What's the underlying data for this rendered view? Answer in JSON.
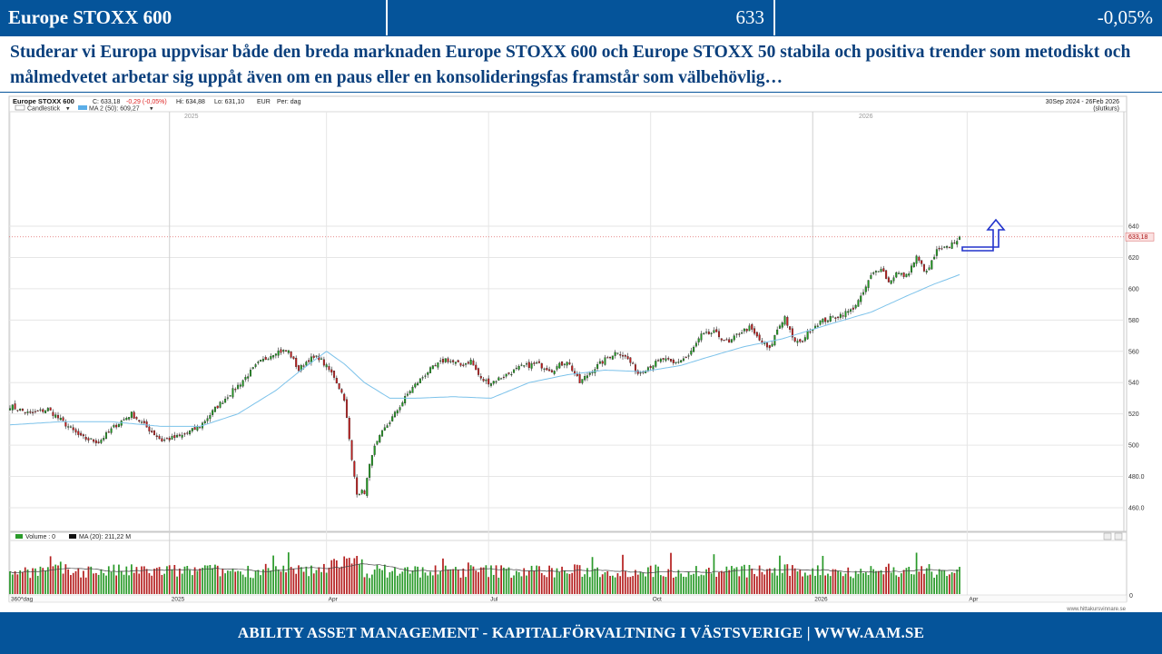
{
  "header": {
    "title": "Europe STOXX 600",
    "price": "633",
    "change": "-0,05%"
  },
  "description": "Studerar vi Europa uppvisar både den breda marknaden Europe STOXX 600 och Europe STOXX 50 stabila och positiva trender som metodiskt och målmedvetet arbetar sig uppåt även om en paus eller en konsolideringsfas framstår som välbehövlig…",
  "footer": "ABILITY ASSET MANAGEMENT -  KAPITALFÖRVALTNING I VÄSTSVERIGE   |   WWW.AAM.SE",
  "chart_data": {
    "type": "line",
    "instrument": "Europe STOXX 600",
    "info": {
      "close": "C: 633,18",
      "chg": "-0,29 (-0,05%)",
      "hi": "Hi: 634,88",
      "lo": "Lo: 631,10",
      "cur": "EUR",
      "per": "Per: dag"
    },
    "legend": {
      "candles": "Candlestick",
      "ma": "MA 2 (50): 609,27"
    },
    "date_range": "30Sep 2024 - 26Feb 2026",
    "date_range_note": "(slutkurs)",
    "last_price_label": "633,18",
    "y_ticks": [
      "640",
      "620",
      "600",
      "580",
      "560",
      "540",
      "520",
      "500",
      "480.0",
      "460.0"
    ],
    "y_tick_values": [
      640,
      620,
      600,
      580,
      560,
      540,
      520,
      500,
      480,
      460
    ],
    "ylim": [
      448,
      652
    ],
    "year_labels": [
      "2025",
      "2026"
    ],
    "month_labels": [
      "360*dag",
      "2025",
      "Apr",
      "Jul",
      "Oct",
      "2026",
      "Apr"
    ],
    "volume_legend": {
      "vol": "Volume : 0",
      "ma": "MA (20): 211,22 M"
    },
    "volume_zero_label": "0",
    "watermark": "www.hittakursvinnare.se",
    "close_keypoints": [
      [
        0,
        525
      ],
      [
        8,
        520
      ],
      [
        15,
        523
      ],
      [
        20,
        516
      ],
      [
        28,
        505
      ],
      [
        35,
        502
      ],
      [
        42,
        513
      ],
      [
        48,
        520
      ],
      [
        55,
        510
      ],
      [
        60,
        503
      ],
      [
        68,
        506
      ],
      [
        75,
        512
      ],
      [
        82,
        525
      ],
      [
        90,
        538
      ],
      [
        98,
        552
      ],
      [
        105,
        560
      ],
      [
        110,
        560
      ],
      [
        114,
        548
      ],
      [
        118,
        555
      ],
      [
        122,
        556
      ],
      [
        128,
        544
      ],
      [
        132,
        530
      ],
      [
        135,
        490
      ],
      [
        137,
        470
      ],
      [
        140,
        470
      ],
      [
        143,
        495
      ],
      [
        147,
        508
      ],
      [
        152,
        520
      ],
      [
        158,
        535
      ],
      [
        165,
        547
      ],
      [
        172,
        555
      ],
      [
        178,
        551
      ],
      [
        182,
        554
      ],
      [
        186,
        542
      ],
      [
        190,
        540
      ],
      [
        196,
        545
      ],
      [
        202,
        550
      ],
      [
        208,
        552
      ],
      [
        214,
        548
      ],
      [
        220,
        554
      ],
      [
        225,
        540
      ],
      [
        230,
        548
      ],
      [
        236,
        556
      ],
      [
        240,
        560
      ],
      [
        244,
        555
      ],
      [
        248,
        546
      ],
      [
        252,
        550
      ],
      [
        258,
        555
      ],
      [
        262,
        552
      ],
      [
        268,
        557
      ],
      [
        273,
        570
      ],
      [
        278,
        572
      ],
      [
        284,
        565
      ],
      [
        288,
        572
      ],
      [
        292,
        575
      ],
      [
        296,
        567
      ],
      [
        300,
        561
      ],
      [
        303,
        574
      ],
      [
        306,
        582
      ],
      [
        309,
        568
      ],
      [
        312,
        565
      ],
      [
        316,
        574
      ],
      [
        320,
        579
      ],
      [
        326,
        582
      ],
      [
        332,
        586
      ],
      [
        336,
        594
      ],
      [
        340,
        608
      ],
      [
        344,
        614
      ],
      [
        347,
        604
      ],
      [
        350,
        610
      ],
      [
        354,
        608
      ],
      [
        358,
        620
      ],
      [
        362,
        610
      ],
      [
        366,
        624
      ],
      [
        370,
        626
      ],
      [
        375,
        633
      ]
    ],
    "ma50_keypoints": [
      [
        0,
        513
      ],
      [
        20,
        515
      ],
      [
        40,
        515
      ],
      [
        60,
        512
      ],
      [
        75,
        512
      ],
      [
        90,
        520
      ],
      [
        105,
        535
      ],
      [
        115,
        548
      ],
      [
        125,
        560
      ],
      [
        132,
        552
      ],
      [
        140,
        540
      ],
      [
        150,
        530
      ],
      [
        160,
        530
      ],
      [
        175,
        531
      ],
      [
        190,
        530
      ],
      [
        205,
        540
      ],
      [
        220,
        545
      ],
      [
        235,
        548
      ],
      [
        250,
        547
      ],
      [
        265,
        551
      ],
      [
        275,
        556
      ],
      [
        290,
        563
      ],
      [
        305,
        568
      ],
      [
        315,
        573
      ],
      [
        325,
        578
      ],
      [
        340,
        585
      ],
      [
        355,
        596
      ],
      [
        365,
        603
      ],
      [
        375,
        609
      ]
    ],
    "n_sessions": 376
  }
}
